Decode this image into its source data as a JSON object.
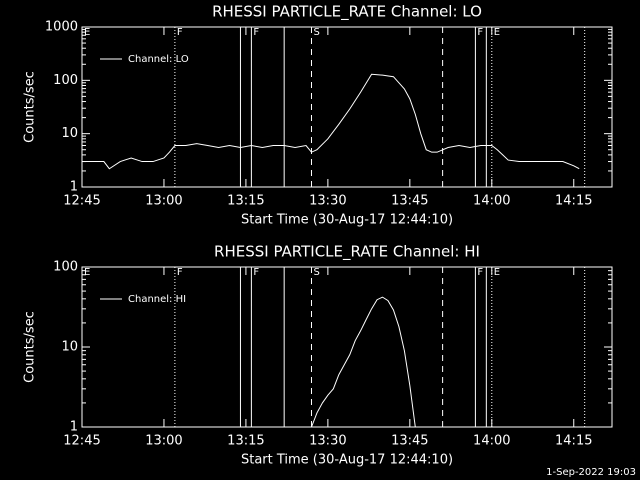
{
  "chart_data": [
    {
      "type": "line",
      "title": "RHESSI PARTICLE_RATE Channel: LO",
      "xlabel": "Start Time (30-Aug-17 12:44:10)",
      "ylabel": "Counts/sec",
      "log_y": true,
      "legend": "upper left",
      "xlim": [
        "12:45",
        "14:22"
      ],
      "xticks": [
        "12:45",
        "13:00",
        "13:15",
        "13:30",
        "13:45",
        "14:00",
        "14:15"
      ],
      "ylim": [
        1,
        1000
      ],
      "yticks": [
        1,
        10,
        100,
        1000
      ],
      "markers": [
        {
          "x": "13:02",
          "style": "dotted"
        },
        {
          "x": "13:14",
          "style": "solid"
        },
        {
          "x": "13:16",
          "style": "solid"
        },
        {
          "x": "13:22",
          "style": "solid"
        },
        {
          "x": "13:27",
          "style": "dashed"
        },
        {
          "x": "13:51",
          "style": "dashed"
        },
        {
          "x": "13:57",
          "style": "solid"
        },
        {
          "x": "13:59",
          "style": "solid"
        },
        {
          "x": "14:00",
          "style": "dotted"
        },
        {
          "x": "14:17",
          "style": "dotted"
        }
      ],
      "annotations": [
        {
          "text": "E",
          "x": "12:45"
        },
        {
          "text": "F",
          "x": "13:02"
        },
        {
          "text": "F",
          "x": "13:16"
        },
        {
          "text": "S",
          "x": "13:27"
        },
        {
          "text": "F",
          "x": "13:57"
        },
        {
          "text": "E",
          "x": "14:00"
        }
      ],
      "series": [
        {
          "name": "Channel: LO",
          "color": "#ffffff",
          "x": [
            "12:45",
            "12:47",
            "12:49",
            "12:50",
            "12:52",
            "12:54",
            "12:56",
            "12:58",
            "13:00",
            "13:01",
            "13:02",
            "13:04",
            "13:06",
            "13:08",
            "13:10",
            "13:12",
            "13:14",
            "13:16",
            "13:18",
            "13:20",
            "13:22",
            "13:24",
            "13:26",
            "13:27",
            "13:28",
            "13:30",
            "13:32",
            "13:34",
            "13:36",
            "13:38",
            "13:40",
            "13:42",
            "13:43",
            "13:44",
            "13:45",
            "13:46",
            "13:47",
            "13:48",
            "13:49",
            "13:50",
            "13:52",
            "13:54",
            "13:56",
            "13:58",
            "14:00",
            "14:01",
            "14:02",
            "14:03",
            "14:05",
            "14:07",
            "14:09",
            "14:11",
            "14:13",
            "14:15",
            "14:16"
          ],
          "values": [
            3,
            3,
            3,
            2.2,
            3,
            3.5,
            3,
            3,
            3.5,
            4.5,
            6,
            6,
            6.5,
            6,
            5.5,
            6,
            5.5,
            6,
            5.5,
            6,
            6,
            5.5,
            6,
            4.5,
            5,
            8,
            15,
            29,
            60,
            130,
            125,
            117,
            90,
            69,
            45,
            23,
            10,
            5,
            4.5,
            4.5,
            5.5,
            6,
            5.5,
            6,
            6,
            5,
            4,
            3.2,
            3,
            3,
            3,
            3,
            3,
            2.5,
            2.2
          ]
        }
      ]
    },
    {
      "type": "line",
      "title": "RHESSI PARTICLE_RATE Channel: HI",
      "xlabel": "Start Time (30-Aug-17 12:44:10)",
      "ylabel": "Counts/sec",
      "log_y": true,
      "legend": "upper left",
      "xlim": [
        "12:45",
        "14:22"
      ],
      "xticks": [
        "12:45",
        "13:00",
        "13:15",
        "13:30",
        "13:45",
        "14:00",
        "14:15"
      ],
      "ylim": [
        1,
        100
      ],
      "yticks": [
        1,
        10,
        100
      ],
      "markers": [
        {
          "x": "13:02",
          "style": "dotted"
        },
        {
          "x": "13:14",
          "style": "solid"
        },
        {
          "x": "13:16",
          "style": "solid"
        },
        {
          "x": "13:22",
          "style": "solid"
        },
        {
          "x": "13:27",
          "style": "dashed"
        },
        {
          "x": "13:51",
          "style": "dashed"
        },
        {
          "x": "13:57",
          "style": "solid"
        },
        {
          "x": "13:59",
          "style": "solid"
        },
        {
          "x": "14:00",
          "style": "dotted"
        },
        {
          "x": "14:17",
          "style": "dotted"
        }
      ],
      "annotations": [
        {
          "text": "E",
          "x": "12:45"
        },
        {
          "text": "F",
          "x": "13:02"
        },
        {
          "text": "F",
          "x": "13:16"
        },
        {
          "text": "S",
          "x": "13:27"
        },
        {
          "text": "F",
          "x": "13:57"
        },
        {
          "text": "E",
          "x": "14:00"
        }
      ],
      "series": [
        {
          "name": "Channel: HI",
          "color": "#ffffff",
          "x": [
            "13:27",
            "13:28",
            "13:29",
            "13:30",
            "13:31",
            "13:32",
            "13:33",
            "13:34",
            "13:35",
            "13:36",
            "13:37",
            "13:38",
            "13:39",
            "13:40",
            "13:41",
            "13:42",
            "13:43",
            "13:44",
            "13:45",
            "13:46"
          ],
          "values": [
            1,
            1.5,
            2,
            2.5,
            3,
            4.5,
            6,
            8,
            12,
            16,
            22,
            30,
            39,
            42,
            38,
            29,
            18,
            9,
            3.3,
            1
          ]
        }
      ]
    }
  ],
  "footer": "1-Sep-2022 19:03"
}
